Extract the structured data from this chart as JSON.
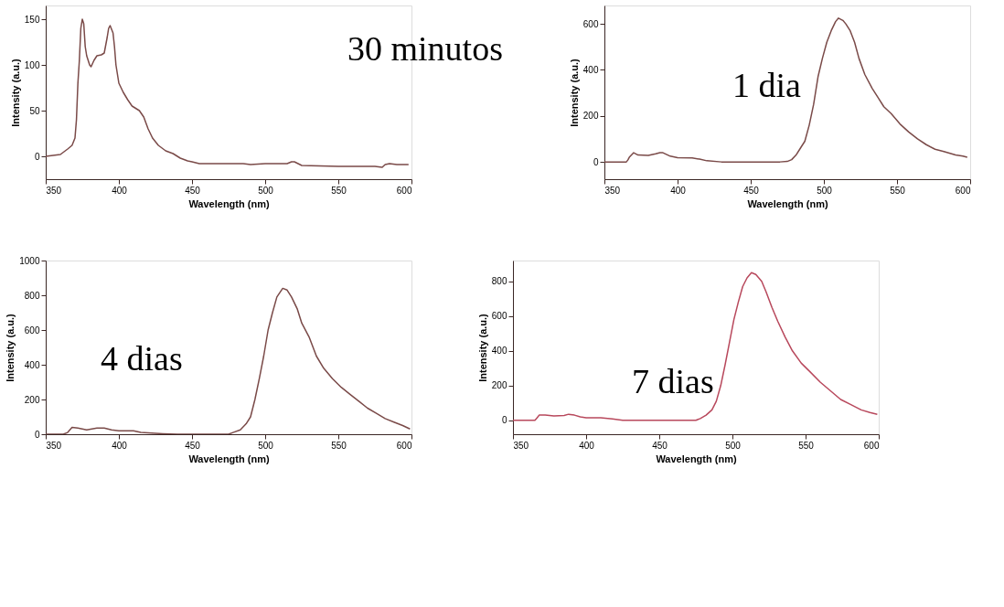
{
  "chart_data": [
    {
      "type": "line",
      "annotations": [
        "30 minutos"
      ],
      "xlabel": "Wavelength (nm)",
      "ylabel": "Intensity (a.u.)",
      "xlim": [
        350,
        600
      ],
      "xticks": [
        350,
        400,
        450,
        500,
        550,
        600
      ],
      "ylim": [
        -25,
        165
      ],
      "yticks": [
        0,
        50,
        100,
        150
      ],
      "grid": false,
      "legend": false,
      "x": [
        350,
        360,
        365,
        368,
        370,
        371,
        372,
        373,
        374,
        375,
        376,
        377,
        378,
        380,
        381,
        383,
        385,
        388,
        390,
        392,
        393,
        394,
        396,
        397,
        398,
        400,
        403,
        406,
        409,
        412,
        414,
        417,
        420,
        423,
        427,
        432,
        437,
        442,
        447,
        450,
        455,
        470,
        485,
        490,
        500,
        515,
        518,
        520,
        525,
        550,
        575,
        580,
        582,
        585,
        590,
        598
      ],
      "series": [
        {
          "color": "#7a4a48",
          "values": [
            0,
            2,
            8,
            12,
            20,
            40,
            80,
            105,
            140,
            150,
            145,
            120,
            110,
            100,
            98,
            105,
            110,
            111,
            113,
            130,
            140,
            143,
            135,
            120,
            100,
            80,
            70,
            62,
            55,
            52,
            50,
            43,
            30,
            20,
            12,
            6,
            3,
            -2,
            -5,
            -6,
            -8,
            -8,
            -8,
            -9,
            -8,
            -8,
            -6,
            -6,
            -10,
            -11,
            -11,
            -12,
            -9,
            -8,
            -9,
            -9
          ]
        }
      ]
    },
    {
      "type": "line",
      "annotations": [
        "1 dia"
      ],
      "xlabel": "Wavelength (nm)",
      "ylabel": "Intensity (a.u.)",
      "xlim": [
        350,
        600
      ],
      "xticks": [
        350,
        400,
        450,
        500,
        550,
        600
      ],
      "ylim": [
        -75,
        680
      ],
      "yticks": [
        0,
        200,
        400,
        600
      ],
      "grid": false,
      "legend": false,
      "x": [
        350,
        365,
        366,
        367,
        370,
        373,
        380,
        385,
        388,
        390,
        395,
        400,
        410,
        415,
        420,
        430,
        450,
        470,
        475,
        478,
        481,
        484,
        487,
        490,
        493,
        496,
        499,
        502,
        505,
        508,
        510,
        513,
        515,
        518,
        521,
        524,
        528,
        533,
        537,
        541,
        546,
        552,
        558,
        564,
        570,
        576,
        582,
        590,
        595,
        598
      ],
      "series": [
        {
          "color": "#7a4a48",
          "values": [
            0,
            0,
            8,
            20,
            40,
            30,
            28,
            35,
            40,
            40,
            25,
            18,
            17,
            12,
            5,
            0,
            0,
            0,
            2,
            10,
            30,
            60,
            90,
            160,
            250,
            370,
            450,
            520,
            570,
            610,
            625,
            615,
            600,
            570,
            520,
            450,
            380,
            320,
            280,
            240,
            210,
            165,
            130,
            100,
            75,
            55,
            45,
            30,
            25,
            20
          ]
        }
      ]
    },
    {
      "type": "line",
      "annotations": [
        "4 dias"
      ],
      "xlabel": "Wavelength (nm)",
      "ylabel": "Intensity (a.u.)",
      "xlim": [
        350,
        600
      ],
      "xticks": [
        350,
        400,
        450,
        500,
        550,
        600
      ],
      "ylim": [
        0,
        1000
      ],
      "yticks": [
        0,
        200,
        400,
        600,
        800,
        {
          "value": 1000,
          "label": "1000"
        }
      ],
      "grid": false,
      "legend": false,
      "x": [
        350,
        362,
        365,
        368,
        372,
        378,
        385,
        390,
        395,
        400,
        410,
        415,
        425,
        430,
        440,
        475,
        478,
        483,
        487,
        490,
        493,
        496,
        499,
        502,
        505,
        508,
        512,
        515,
        518,
        522,
        525,
        530,
        535,
        540,
        546,
        552,
        558,
        564,
        570,
        576,
        582,
        588,
        594,
        599
      ],
      "series": [
        {
          "color": "#7a4a48",
          "values": [
            0,
            0,
            10,
            40,
            35,
            25,
            35,
            35,
            25,
            20,
            20,
            10,
            5,
            3,
            0,
            0,
            10,
            25,
            60,
            100,
            200,
            320,
            450,
            600,
            700,
            790,
            840,
            830,
            790,
            720,
            640,
            560,
            450,
            380,
            320,
            270,
            230,
            190,
            150,
            120,
            90,
            70,
            50,
            30
          ]
        }
      ]
    },
    {
      "type": "line",
      "annotations": [
        "7 dias"
      ],
      "xlabel": "Wavelength (nm)",
      "ylabel": "Intensity (a.u.)",
      "xlim": [
        350,
        600
      ],
      "xticks": [
        350,
        400,
        450,
        500,
        550,
        600
      ],
      "ylim": [
        -80,
        920
      ],
      "yticks": [
        0,
        200,
        400,
        600,
        800
      ],
      "grid": false,
      "legend": false,
      "x": [
        350,
        365,
        366,
        368,
        372,
        378,
        385,
        388,
        392,
        396,
        400,
        410,
        418,
        425,
        450,
        475,
        478,
        482,
        486,
        489,
        492,
        495,
        498,
        501,
        504,
        507,
        510,
        513,
        516,
        520,
        523,
        527,
        531,
        536,
        541,
        547,
        553,
        560,
        567,
        574,
        581,
        588,
        594,
        599
      ],
      "series": [
        {
          "color": "#b8485c",
          "values": [
            0,
            0,
            10,
            30,
            30,
            25,
            28,
            35,
            30,
            20,
            15,
            15,
            8,
            0,
            0,
            0,
            10,
            30,
            60,
            110,
            200,
            320,
            450,
            580,
            680,
            770,
            820,
            850,
            840,
            800,
            740,
            650,
            570,
            480,
            400,
            330,
            280,
            220,
            170,
            120,
            90,
            60,
            45,
            35
          ]
        }
      ]
    }
  ]
}
